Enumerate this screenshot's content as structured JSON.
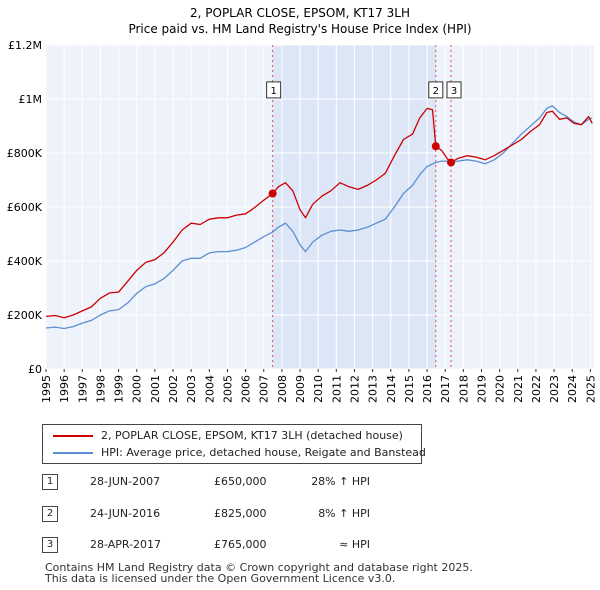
{
  "chart_data": {
    "type": "line",
    "title": "2, POPLAR CLOSE, EPSOM, KT17 3LH",
    "subtitle": "Price paid vs. HM Land Registry's House Price Index (HPI)",
    "xlabel": "",
    "ylabel": "",
    "xlim": [
      1995,
      2025.2
    ],
    "ylim": [
      0,
      1200000
    ],
    "x_ticks": [
      1995,
      1996,
      1997,
      1998,
      1999,
      2000,
      2001,
      2002,
      2003,
      2004,
      2005,
      2006,
      2007,
      2008,
      2009,
      2010,
      2011,
      2012,
      2013,
      2014,
      2015,
      2016,
      2017,
      2018,
      2019,
      2020,
      2021,
      2022,
      2023,
      2024,
      2025
    ],
    "y_ticks": [
      0,
      200000,
      400000,
      600000,
      800000,
      1000000,
      1200000
    ],
    "y_tick_labels": [
      "£0",
      "£200K",
      "£400K",
      "£600K",
      "£800K",
      "£1M",
      "£1.2M"
    ],
    "grid": true,
    "shaded_region": {
      "from": 2007.49,
      "to": 2016.48,
      "color": "#dde6f7"
    },
    "series": [
      {
        "name": "2, POPLAR CLOSE, EPSOM, KT17 3LH (detached house)",
        "color": "#cc0000",
        "points": [
          [
            1995.0,
            195000
          ],
          [
            1995.5,
            198000
          ],
          [
            1996.0,
            190000
          ],
          [
            1996.5,
            200000
          ],
          [
            1997.0,
            215000
          ],
          [
            1997.5,
            230000
          ],
          [
            1998.0,
            262000
          ],
          [
            1998.5,
            282000
          ],
          [
            1999.0,
            285000
          ],
          [
            1999.5,
            325000
          ],
          [
            2000.0,
            365000
          ],
          [
            2000.5,
            395000
          ],
          [
            2001.0,
            405000
          ],
          [
            2001.5,
            430000
          ],
          [
            2002.0,
            470000
          ],
          [
            2002.5,
            515000
          ],
          [
            2003.0,
            540000
          ],
          [
            2003.5,
            535000
          ],
          [
            2004.0,
            555000
          ],
          [
            2004.5,
            560000
          ],
          [
            2005.0,
            560000
          ],
          [
            2005.5,
            570000
          ],
          [
            2006.0,
            575000
          ],
          [
            2006.5,
            598000
          ],
          [
            2007.0,
            625000
          ],
          [
            2007.49,
            650000
          ],
          [
            2007.8,
            675000
          ],
          [
            2008.2,
            690000
          ],
          [
            2008.6,
            660000
          ],
          [
            2009.0,
            590000
          ],
          [
            2009.3,
            560000
          ],
          [
            2009.7,
            610000
          ],
          [
            2010.2,
            640000
          ],
          [
            2010.7,
            660000
          ],
          [
            2011.2,
            690000
          ],
          [
            2011.7,
            675000
          ],
          [
            2012.2,
            665000
          ],
          [
            2012.7,
            680000
          ],
          [
            2013.2,
            700000
          ],
          [
            2013.7,
            725000
          ],
          [
            2014.2,
            790000
          ],
          [
            2014.7,
            850000
          ],
          [
            2015.2,
            870000
          ],
          [
            2015.6,
            930000
          ],
          [
            2016.0,
            965000
          ],
          [
            2016.3,
            960000
          ],
          [
            2016.48,
            825000
          ],
          [
            2016.8,
            810000
          ],
          [
            2017.1,
            780000
          ],
          [
            2017.32,
            765000
          ],
          [
            2017.7,
            780000
          ],
          [
            2018.2,
            790000
          ],
          [
            2018.7,
            785000
          ],
          [
            2019.2,
            775000
          ],
          [
            2019.7,
            790000
          ],
          [
            2020.2,
            810000
          ],
          [
            2020.7,
            830000
          ],
          [
            2021.2,
            850000
          ],
          [
            2021.7,
            880000
          ],
          [
            2022.2,
            905000
          ],
          [
            2022.6,
            950000
          ],
          [
            2022.9,
            955000
          ],
          [
            2023.3,
            925000
          ],
          [
            2023.7,
            930000
          ],
          [
            2024.1,
            910000
          ],
          [
            2024.5,
            905000
          ],
          [
            2024.9,
            935000
          ],
          [
            2025.1,
            910000
          ]
        ]
      },
      {
        "name": "HPI: Average price, detached house, Reigate and Banstead",
        "color": "#5b8fd1",
        "points": [
          [
            1995.0,
            152000
          ],
          [
            1995.5,
            155000
          ],
          [
            1996.0,
            150000
          ],
          [
            1996.5,
            157000
          ],
          [
            1997.0,
            170000
          ],
          [
            1997.5,
            180000
          ],
          [
            1998.0,
            200000
          ],
          [
            1998.5,
            215000
          ],
          [
            1999.0,
            220000
          ],
          [
            1999.5,
            245000
          ],
          [
            2000.0,
            280000
          ],
          [
            2000.5,
            305000
          ],
          [
            2001.0,
            315000
          ],
          [
            2001.5,
            335000
          ],
          [
            2002.0,
            365000
          ],
          [
            2002.5,
            400000
          ],
          [
            2003.0,
            410000
          ],
          [
            2003.5,
            410000
          ],
          [
            2004.0,
            430000
          ],
          [
            2004.5,
            435000
          ],
          [
            2005.0,
            435000
          ],
          [
            2005.5,
            440000
          ],
          [
            2006.0,
            450000
          ],
          [
            2006.5,
            470000
          ],
          [
            2007.0,
            490000
          ],
          [
            2007.49,
            507000
          ],
          [
            2007.8,
            525000
          ],
          [
            2008.2,
            540000
          ],
          [
            2008.6,
            510000
          ],
          [
            2009.0,
            460000
          ],
          [
            2009.3,
            435000
          ],
          [
            2009.7,
            470000
          ],
          [
            2010.2,
            495000
          ],
          [
            2010.7,
            510000
          ],
          [
            2011.2,
            515000
          ],
          [
            2011.7,
            510000
          ],
          [
            2012.2,
            515000
          ],
          [
            2012.7,
            525000
          ],
          [
            2013.2,
            540000
          ],
          [
            2013.7,
            555000
          ],
          [
            2014.2,
            600000
          ],
          [
            2014.7,
            650000
          ],
          [
            2015.2,
            680000
          ],
          [
            2015.6,
            720000
          ],
          [
            2016.0,
            750000
          ],
          [
            2016.48,
            765000
          ],
          [
            2016.8,
            770000
          ],
          [
            2017.1,
            770000
          ],
          [
            2017.32,
            765000
          ],
          [
            2017.7,
            770000
          ],
          [
            2018.2,
            775000
          ],
          [
            2018.7,
            770000
          ],
          [
            2019.2,
            760000
          ],
          [
            2019.7,
            775000
          ],
          [
            2020.2,
            800000
          ],
          [
            2020.7,
            835000
          ],
          [
            2021.2,
            870000
          ],
          [
            2021.7,
            900000
          ],
          [
            2022.2,
            930000
          ],
          [
            2022.6,
            965000
          ],
          [
            2022.9,
            975000
          ],
          [
            2023.3,
            950000
          ],
          [
            2023.7,
            935000
          ],
          [
            2024.1,
            915000
          ],
          [
            2024.5,
            905000
          ],
          [
            2024.9,
            925000
          ],
          [
            2025.1,
            930000
          ]
        ]
      }
    ],
    "sales": [
      {
        "label": "1",
        "x": 2007.49,
        "price": 650000,
        "box_price": 1030000
      },
      {
        "label": "2",
        "x": 2016.48,
        "price": 825000,
        "box_price": 1030000
      },
      {
        "label": "3",
        "x": 2017.32,
        "price": 765000,
        "box_price": 1030000
      }
    ],
    "legend_position": "below chart"
  },
  "legend": [
    {
      "label": "2, POPLAR CLOSE, EPSOM, KT17 3LH (detached house)",
      "color": "#cc0000"
    },
    {
      "label": "HPI: Average price, detached house, Reigate and Banstead",
      "color": "#5b8fd1"
    }
  ],
  "transactions": [
    {
      "num": "1",
      "date": "28-JUN-2007",
      "price": "£650,000",
      "hpi": "28% ↑ HPI"
    },
    {
      "num": "2",
      "date": "24-JUN-2016",
      "price": "£825,000",
      "hpi": "8% ↑ HPI"
    },
    {
      "num": "3",
      "date": "28-APR-2017",
      "price": "£765,000",
      "hpi": "≈ HPI"
    }
  ],
  "footer": "Contains HM Land Registry data © Crown copyright and database right 2025.\nThis data is licensed under the Open Government Licence v3.0."
}
